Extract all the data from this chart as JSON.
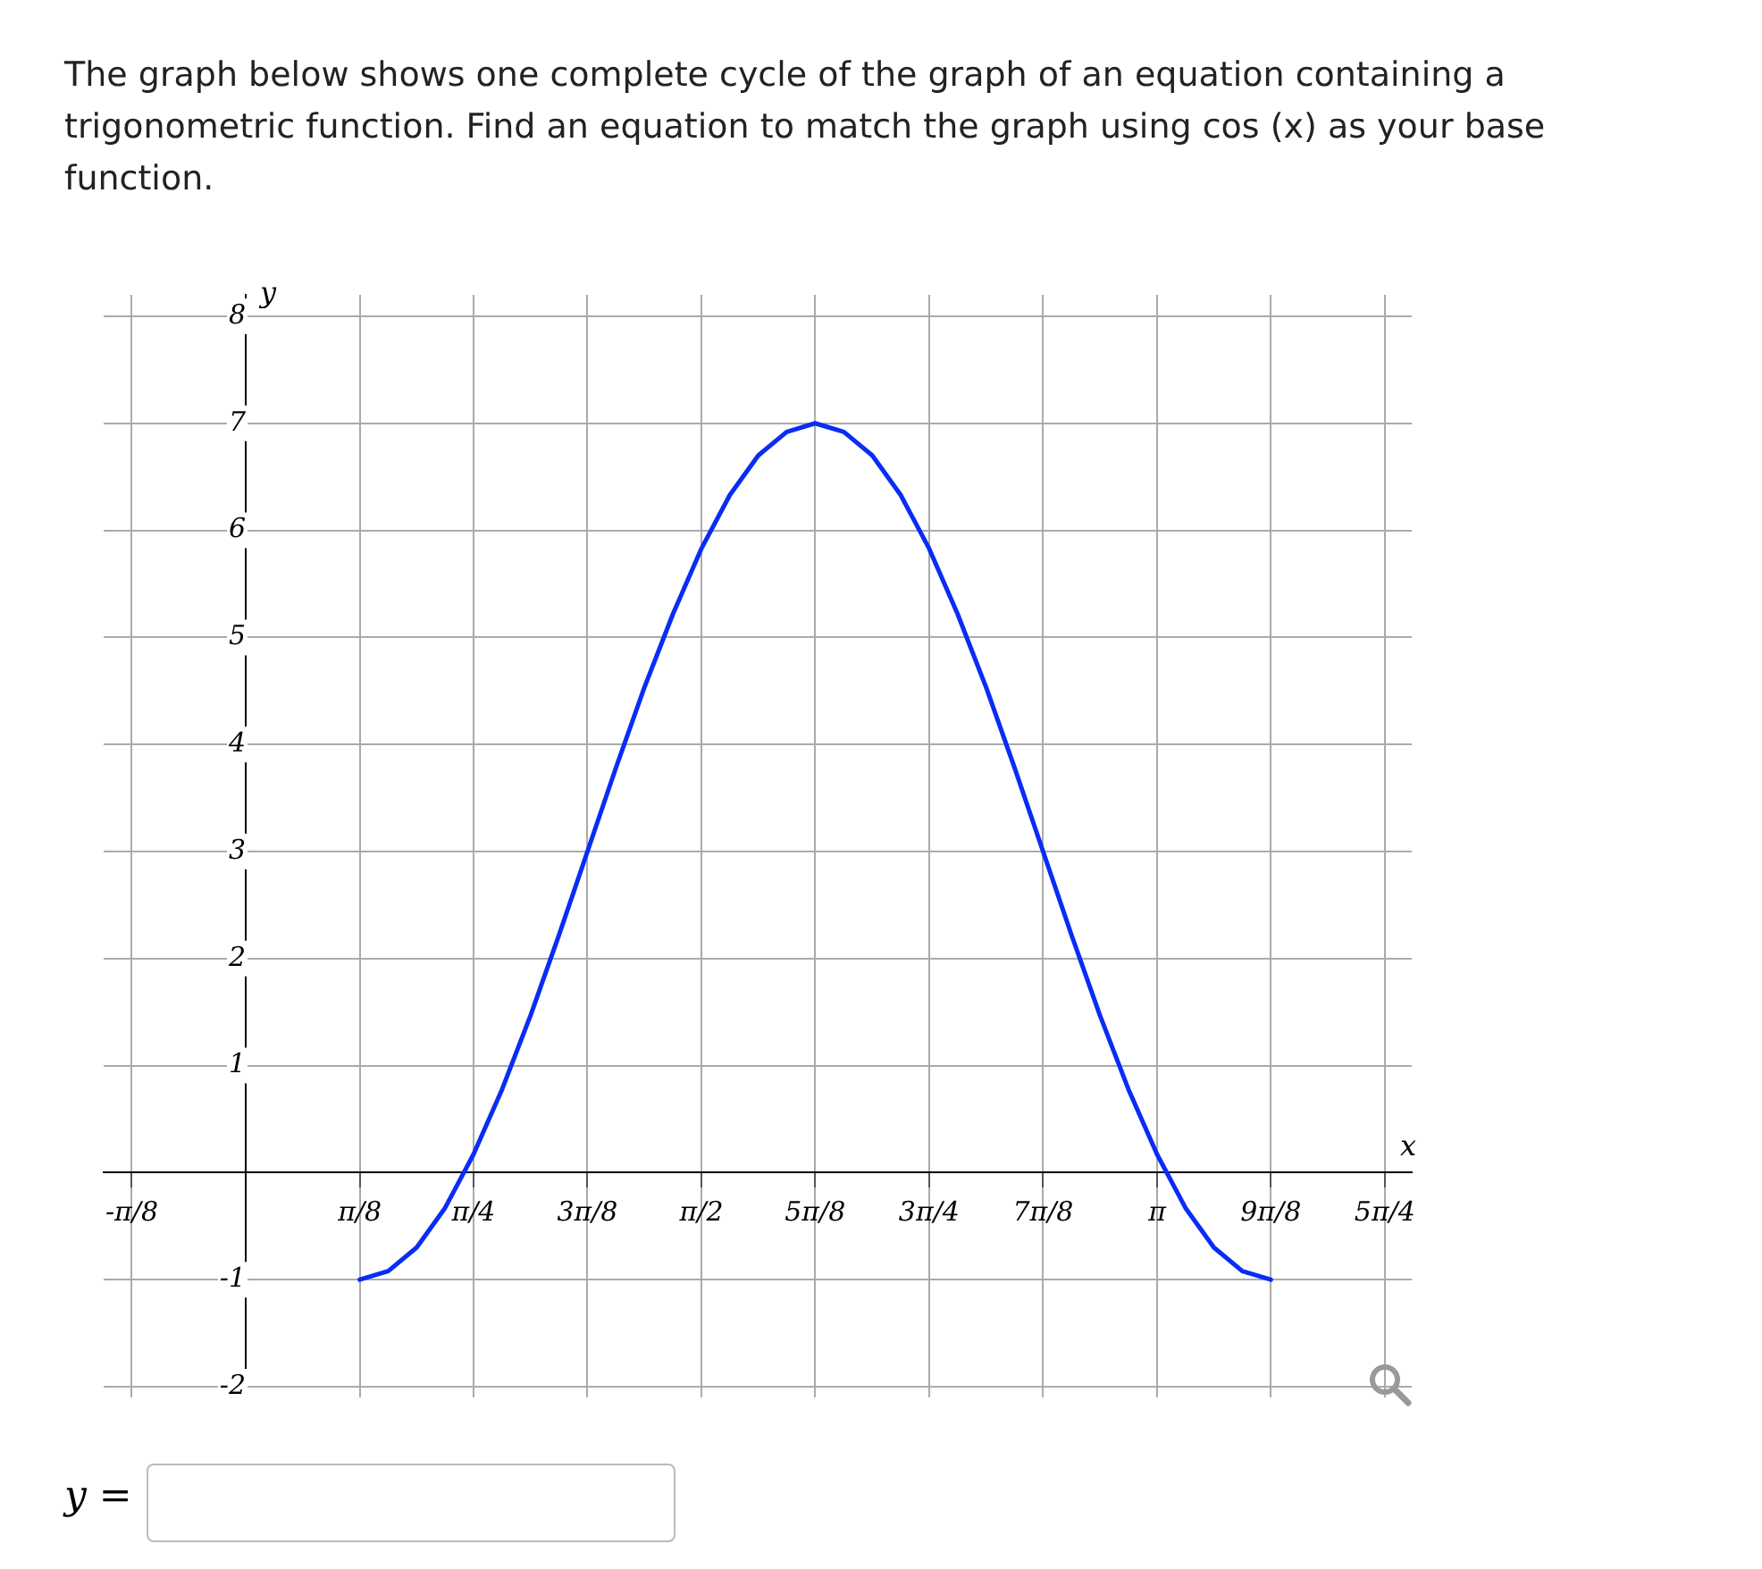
{
  "chart_data": {
    "type": "line",
    "title": "The graph below shows one complete cycle of the graph of an equation containing a trigonometric function. Find an equation to match the graph using cos (x) as your base function.",
    "xlabel": "x",
    "ylabel": "y",
    "annotations": [
      "y ="
    ],
    "x": [
      0.393,
      0.491,
      0.589,
      0.687,
      0.785,
      0.884,
      0.982,
      1.08,
      1.178,
      1.276,
      1.374,
      1.473,
      1.571,
      1.669,
      1.767,
      1.865,
      1.963,
      2.062,
      2.16,
      2.258,
      2.356,
      2.454,
      2.553,
      2.651,
      2.749,
      2.847,
      2.945,
      3.043,
      3.142,
      3.24,
      3.338,
      3.436,
      3.534
    ],
    "series": [
      {
        "color": "#0a2cf5",
        "values": [
          -1,
          -0.92,
          -0.7,
          -0.33,
          0.17,
          0.78,
          1.47,
          2.22,
          3,
          3.78,
          4.53,
          5.22,
          5.83,
          6.33,
          6.7,
          6.92,
          7,
          6.92,
          6.7,
          6.33,
          5.83,
          5.22,
          4.53,
          3.78,
          3,
          2.22,
          1.47,
          0.78,
          0.17,
          -0.33,
          -0.7,
          -0.92,
          -1
        ]
      }
    ],
    "xlim": [
      -0.49,
      4.02
    ],
    "ylim": [
      -2.1,
      8.2
    ],
    "xticks": [
      {
        "value": -0.393,
        "label": "-π/8"
      },
      {
        "value": 0,
        "label": null
      },
      {
        "value": 0.393,
        "label": "π/8"
      },
      {
        "value": 0.785,
        "label": "π/4"
      },
      {
        "value": 1.178,
        "label": "3π/8"
      },
      {
        "value": 1.571,
        "label": "π/2"
      },
      {
        "value": 1.963,
        "label": "5π/8"
      },
      {
        "value": 2.356,
        "label": "3π/4"
      },
      {
        "value": 2.749,
        "label": "7π/8"
      },
      {
        "value": 3.142,
        "label": "π"
      },
      {
        "value": 3.534,
        "label": "9π/8"
      },
      {
        "value": 3.927,
        "label": "5π/4"
      }
    ],
    "yticks": [
      -2,
      -1,
      {
        "value": 0,
        "label": null
      },
      1,
      2,
      3,
      4,
      5,
      6,
      7,
      8
    ],
    "grid": true,
    "legend": false,
    "marker": "none",
    "line_style": "solid"
  }
}
